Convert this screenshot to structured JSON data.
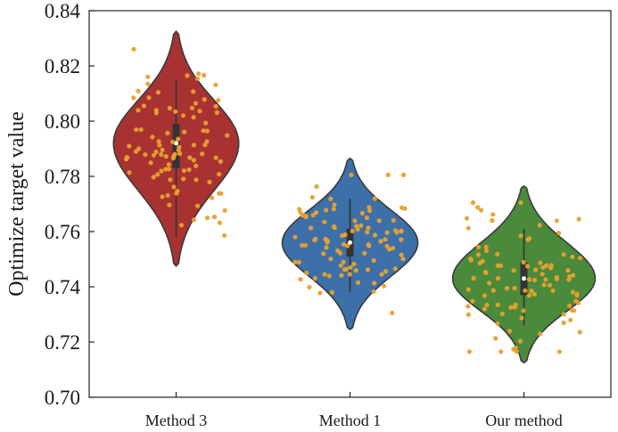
{
  "chart_data": {
    "type": "violin",
    "title": "",
    "xlabel": "",
    "ylabel": "Optimize target value",
    "ylim": [
      0.7,
      0.84
    ],
    "yticks": [
      "0.70",
      "0.72",
      "0.74",
      "0.76",
      "0.78",
      "0.80",
      "0.82",
      "0.84"
    ],
    "grid": false,
    "categories": [
      "Method 3",
      "Method 1",
      "Our method"
    ],
    "series": [
      {
        "name": "Method 3",
        "color": "#a83232",
        "min": 0.7475,
        "max": 0.8325,
        "mode": 0.792,
        "q1": 0.783,
        "median": 0.792,
        "q3": 0.799,
        "whisker_low": 0.758,
        "whisker_high": 0.815,
        "max_half_width_fraction": 0.36
      },
      {
        "name": "Method 1",
        "color": "#3d6fa8",
        "min": 0.7245,
        "max": 0.7865,
        "mode": 0.756,
        "q1": 0.751,
        "median": 0.756,
        "q3": 0.761,
        "whisker_low": 0.738,
        "whisker_high": 0.772,
        "max_half_width_fraction": 0.39
      },
      {
        "name": "Our method",
        "color": "#4a8a3a",
        "min": 0.7125,
        "max": 0.7765,
        "mode": 0.743,
        "q1": 0.737,
        "median": 0.743,
        "q3": 0.749,
        "whisker_low": 0.726,
        "whisker_high": 0.761,
        "max_half_width_fraction": 0.41
      }
    ],
    "points_color": "#e8a030",
    "points_per_group": 100
  }
}
